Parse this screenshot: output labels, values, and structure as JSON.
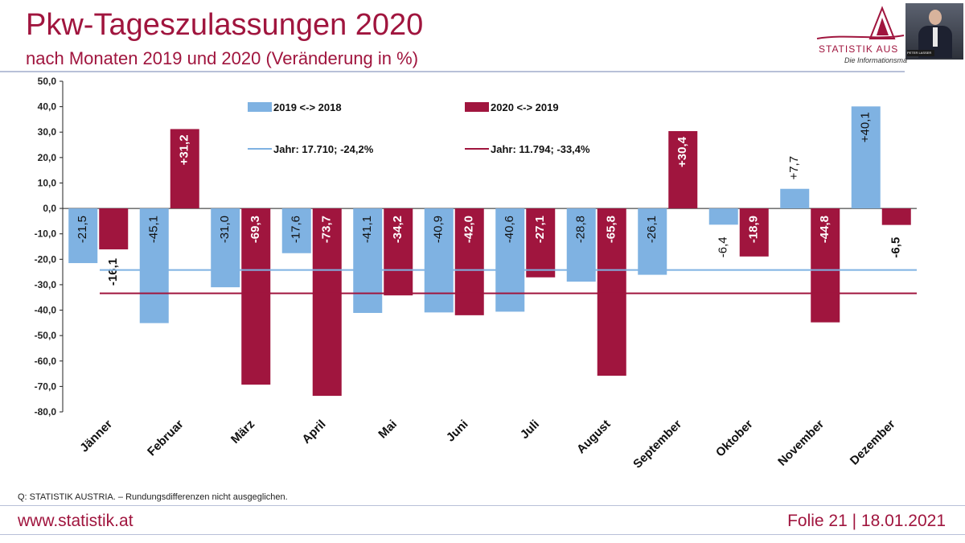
{
  "header": {
    "title": "Pkw-Tageszulassungen 2020",
    "subtitle": "nach Monaten 2019 und 2020 (Veränderung in %)"
  },
  "logo": {
    "name": "STATISTIK AUS",
    "tagline": "Die Informationsma"
  },
  "webcam": {
    "name_tag": "PETER LASSER"
  },
  "footer": {
    "source": "Q: STATISTIK AUSTRIA. – Rundungsdifferenzen nicht ausgeglichen.",
    "url": "www.statistik.at",
    "slide": "Folie 21 | 18.01.2021"
  },
  "colors": {
    "accent": "#a0153e",
    "series_2019": "#7fb2e2",
    "series_2020": "#a0153e",
    "rule": "#b8c0d8"
  },
  "chart_data": {
    "type": "bar",
    "title": "Pkw-Tageszulassungen 2020",
    "subtitle": "nach Monaten 2019 und 2020 (Veränderung in %)",
    "categories": [
      "Jänner",
      "Februar",
      "März",
      "April",
      "Mai",
      "Juni",
      "Juli",
      "August",
      "September",
      "Oktober",
      "November",
      "Dezember"
    ],
    "series": [
      {
        "name": "2019 <-> 2018",
        "color": "#7fb2e2",
        "values": [
          -21.5,
          -45.1,
          -31.0,
          -17.6,
          -41.1,
          -40.9,
          -40.6,
          -28.8,
          -26.1,
          -6.4,
          7.7,
          40.1
        ],
        "labels": [
          "-21,5",
          "-45,1",
          "-31,0",
          "-17,6",
          "-41,1",
          "-40,9",
          "-40,6",
          "-28,8",
          "-26,1",
          "-6,4",
          "+7,7",
          "+40,1"
        ]
      },
      {
        "name": "2020 <-> 2019",
        "color": "#a0153e",
        "values": [
          -16.1,
          31.2,
          -69.3,
          -73.7,
          -34.2,
          -42.0,
          -27.1,
          -65.8,
          30.4,
          -18.9,
          -44.8,
          -6.5
        ],
        "labels": [
          "-16,1",
          "+31,2",
          "-69,3",
          "-73,7",
          "-34,2",
          "-42,0",
          "-27,1",
          "-65,8",
          "+30,4",
          "-18,9",
          "-44,8",
          "-6,5"
        ]
      }
    ],
    "reference_lines": [
      {
        "name": "Jahr: 17.710; -24,2%",
        "value": -24.2,
        "color": "#7fb2e2"
      },
      {
        "name": "Jahr: 11.794; -33,4%",
        "value": -33.4,
        "color": "#a0153e"
      }
    ],
    "ylim": [
      -80,
      50
    ],
    "yticks": [
      50,
      40,
      30,
      20,
      10,
      0,
      -10,
      -20,
      -30,
      -40,
      -50,
      -60,
      -70,
      -80
    ],
    "ytick_labels": [
      "50,0",
      "40,0",
      "30,0",
      "20,0",
      "10,0",
      "0,0",
      "-10,0",
      "-20,0",
      "-30,0",
      "-40,0",
      "-50,0",
      "-60,0",
      "-70,0",
      "-80,0"
    ],
    "grid": false,
    "legend": "top"
  }
}
